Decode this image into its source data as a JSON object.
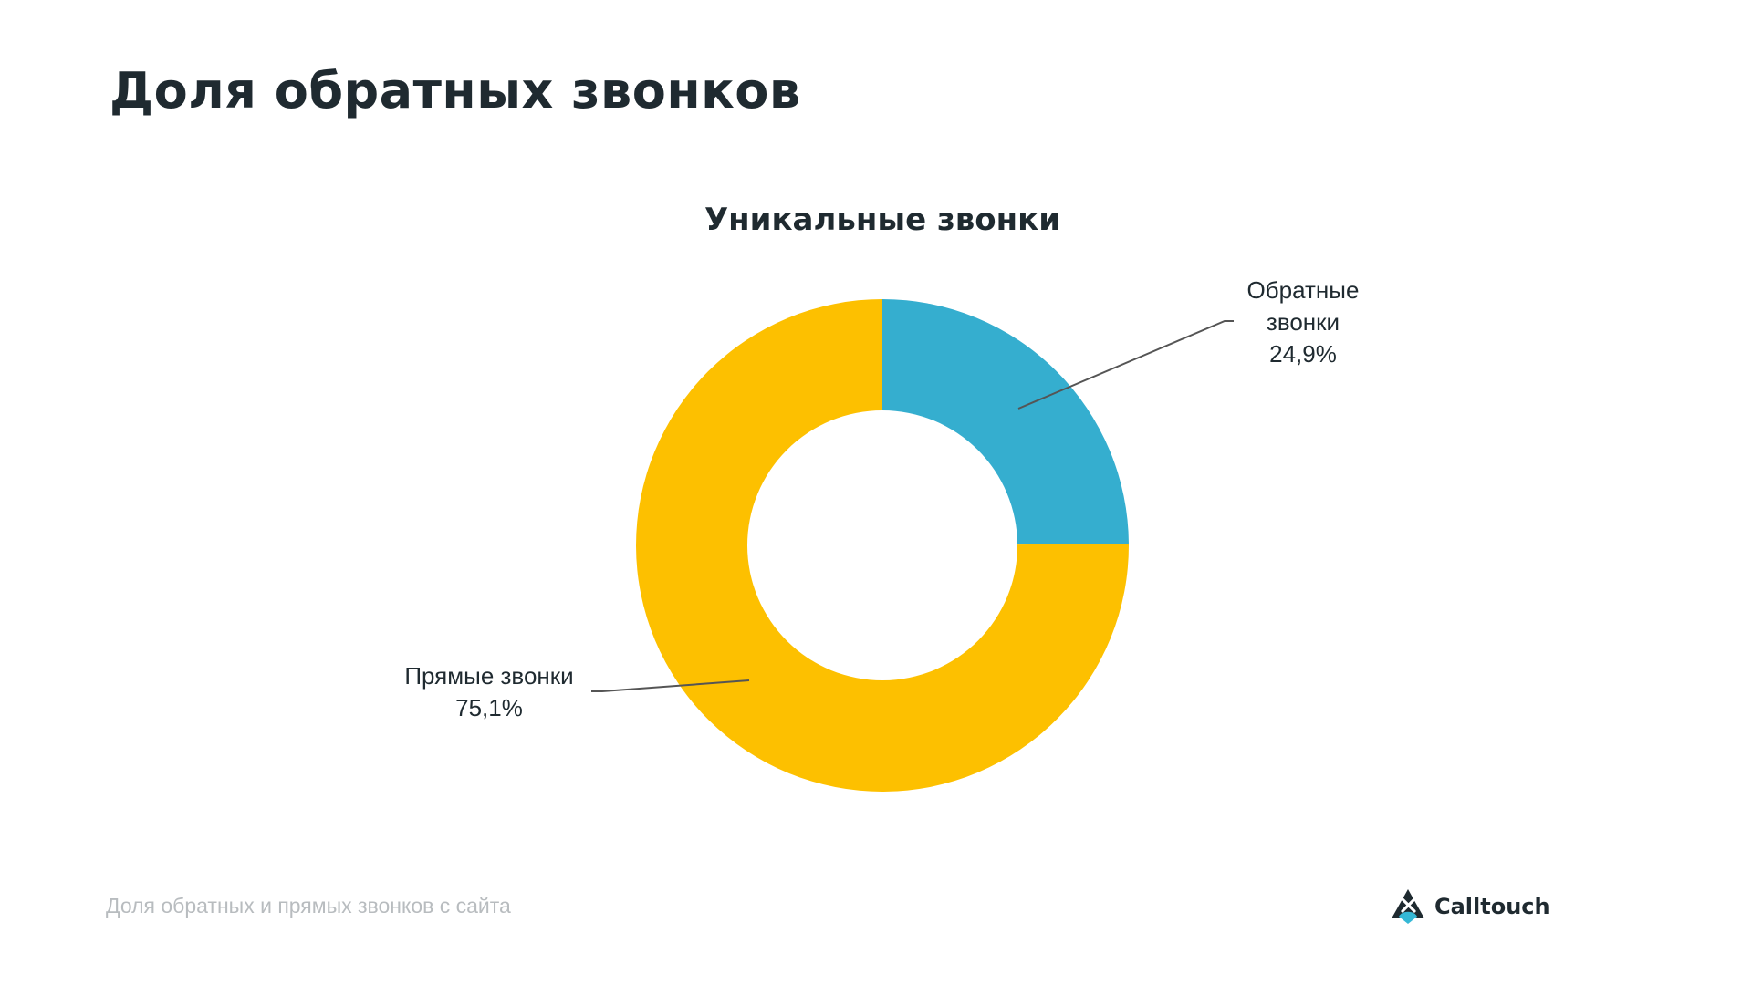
{
  "slide": {
    "title": "Доля обратных звонков",
    "caption": "Доля обратных и прямых звонков с сайта"
  },
  "brand": {
    "name": "Calltouch",
    "logo_icon": "calltouch-logo-icon",
    "logo_colors": [
      "#1f2a30",
      "#35b8d6"
    ]
  },
  "chart_data": {
    "type": "pie",
    "variant": "donut",
    "title": "Уникальные звонки",
    "series": [
      {
        "name": "Обратные звонки",
        "label_lines": [
          "Обратные",
          "звонки",
          "24,9%"
        ],
        "value": 24.9,
        "color": "#35aecf"
      },
      {
        "name": "Прямые звонки",
        "label_lines": [
          "Прямые звонки",
          "75,1%"
        ],
        "value": 75.1,
        "color": "#fdc000"
      }
    ],
    "start": "12 o'clock",
    "direction": "clockwise",
    "legend": "none"
  }
}
